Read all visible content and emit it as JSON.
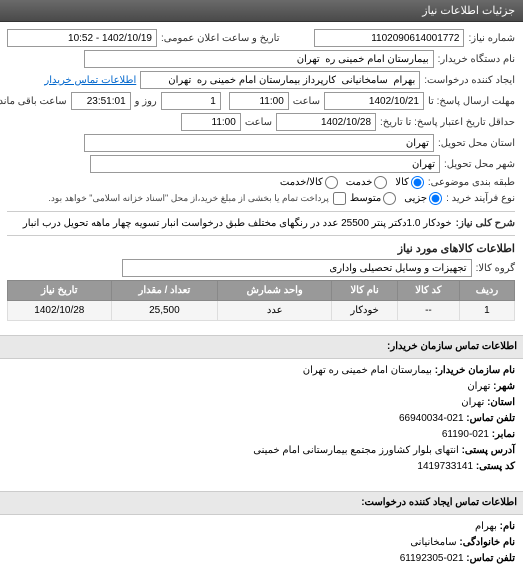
{
  "header": {
    "title": "جزئیات اطلاعات نیاز"
  },
  "form": {
    "requestNumber": {
      "label": "شماره نیاز:",
      "value": "1102090614001772"
    },
    "publicDate": {
      "label": "تاریخ و ساعت اعلان عمومی:",
      "value": "1402/10/19 - 10:52"
    },
    "buyerName": {
      "label": "نام دستگاه خریدار:",
      "value": "بیمارستان امام خمینی ره  تهران"
    },
    "requestCreator": {
      "label": "ایجاد کننده درخواست:",
      "value": "بهرام  سامخانیانی  کارپرداز بیمارستان امام خمینی ره  تهران"
    },
    "buyerContactLink": "اطلاعات تماس خریدار",
    "responseDeadline": {
      "label": "مهلت ارسال پاسخ: تا",
      "date": "1402/10/21",
      "timeLabel": "ساعت",
      "time": "11:00",
      "dayLabel": "روز و",
      "day": "1",
      "remainLabel": "ساعت باقی مانده",
      "remain": "23:51:01"
    },
    "validity": {
      "label": "حداقل تاریخ اعتبار پاسخ: تا تاریخ:",
      "date": "1402/10/28",
      "timeLabel": "ساعت",
      "time": "11:00"
    },
    "deliveryProvince": {
      "label": "استان محل تحویل:",
      "value": "تهران"
    },
    "deliveryCity": {
      "label": "شهر محل تحویل:",
      "value": "تهران"
    },
    "classification": {
      "label": "طبقه بندی موضوعی:",
      "options": [
        {
          "label": "کالا",
          "checked": true
        },
        {
          "label": "خدمت",
          "checked": false
        },
        {
          "label": "کالا/خدمت",
          "checked": false
        }
      ]
    },
    "purchaseType": {
      "label": "نوع فرآیند خرید :",
      "options": [
        {
          "label": "جزیی",
          "checked": true
        },
        {
          "label": "متوسط",
          "checked": false
        }
      ],
      "note": "پرداخت تمام یا بخشی از مبلغ خرید،از محل \"اسناد خزانه اسلامی\" خواهد بود."
    },
    "generalDesc": {
      "label": "شرح کلی نیاز:",
      "value": "خودکار 1.0دکتر پنتر 25500 عدد در رنگهای مختلف طبق درخواست انبار تسویه چهار ماهه تحویل درب انبار"
    },
    "goodsInfoTitle": "اطلاعات کالاهای مورد نیاز",
    "goodsGroup": {
      "label": "گروه کالا:",
      "value": "تجهیزات و وسایل تحصیلی واداری"
    }
  },
  "table": {
    "headers": [
      "ردیف",
      "کد کالا",
      "نام کالا",
      "واحد شمارش",
      "تعداد / مقدار",
      "تاریخ نیاز"
    ],
    "rows": [
      [
        "1",
        "--",
        "خودکار",
        "عدد",
        "25,500",
        "1402/10/28"
      ]
    ]
  },
  "buyerContact": {
    "title": "اطلاعات تماس سازمان خریدار:",
    "orgName": {
      "label": "نام سازمان خریدار:",
      "value": "بیمارستان امام خمینی ره تهران"
    },
    "city": {
      "label": "شهر:",
      "value": "تهران"
    },
    "province": {
      "label": "استان:",
      "value": "تهران"
    },
    "phone": {
      "label": "تلفن تماس:",
      "value": "021-66940034"
    },
    "fax": {
      "label": "نمابر:",
      "value": "021-61190"
    },
    "address": {
      "label": "آدرس پستی:",
      "value": "انتهای بلوار کشاورز مجتمع بیمارستانی امام خمینی"
    },
    "postal": {
      "label": "کد پستی:",
      "value": "1419733141"
    }
  },
  "requesterContact": {
    "title": "اطلاعات تماس ایجاد کننده درخواست:",
    "firstName": {
      "label": "نام:",
      "value": "بهرام"
    },
    "lastName": {
      "label": "نام خانوادگی:",
      "value": "سامخانیانی"
    },
    "phone": {
      "label": "تلفن تماس:",
      "value": "021-61192305"
    }
  }
}
